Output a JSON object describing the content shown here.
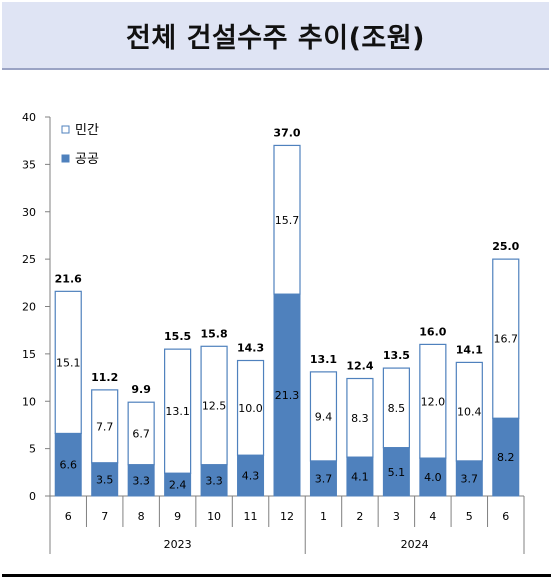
{
  "title": "전체 건설수주 추이(조원)",
  "chart_data": {
    "type": "bar",
    "stacked": true,
    "categories": [
      "6",
      "7",
      "8",
      "9",
      "10",
      "11",
      "12",
      "1",
      "2",
      "3",
      "4",
      "5",
      "6"
    ],
    "groups": [
      {
        "label": "2023",
        "from": 0,
        "to": 6
      },
      {
        "label": "2024",
        "from": 7,
        "to": 12
      }
    ],
    "series": [
      {
        "name": "공공",
        "values": [
          6.6,
          3.5,
          3.3,
          2.4,
          3.3,
          4.3,
          21.3,
          3.7,
          4.1,
          5.1,
          4.0,
          3.7,
          8.2
        ],
        "color": "#4f81bd"
      },
      {
        "name": "민간",
        "values": [
          15.1,
          7.7,
          6.7,
          13.1,
          12.5,
          10.0,
          15.7,
          9.4,
          8.3,
          8.5,
          12.0,
          10.4,
          16.7
        ],
        "color": "#ffffff"
      }
    ],
    "totals": [
      21.6,
      11.2,
      9.9,
      15.5,
      15.8,
      14.3,
      37.0,
      13.1,
      12.4,
      13.5,
      16.0,
      14.1,
      25.0
    ],
    "ylim": [
      0,
      40
    ],
    "yticks": [
      0,
      5,
      10,
      15,
      20,
      25,
      30,
      35,
      40
    ],
    "legend": [
      {
        "label": "민간",
        "marker": "hollow-square"
      },
      {
        "label": "공공",
        "marker": "filled-square"
      }
    ],
    "legend_position": "top-left",
    "grid": false
  }
}
